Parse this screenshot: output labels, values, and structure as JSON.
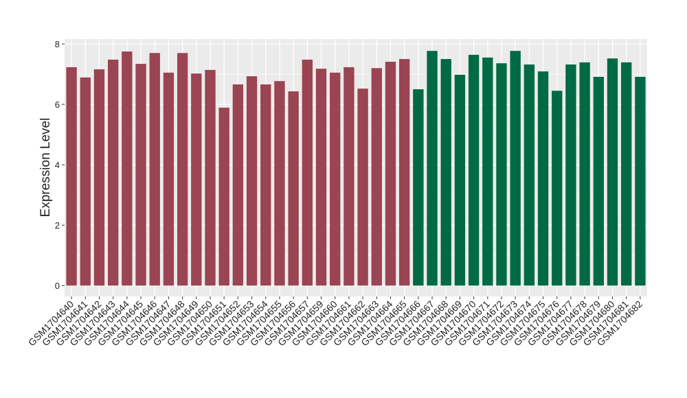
{
  "chart_data": {
    "type": "bar",
    "ylabel": "Expression Level",
    "categories": [
      "GSM1704640",
      "GSM1704641",
      "GSM1704642",
      "GSM1704643",
      "GSM1704644",
      "GSM1704645",
      "GSM1704646",
      "GSM1704647",
      "GSM1704648",
      "GSM1704649",
      "GSM1704650",
      "GSM1704651",
      "GSM1704652",
      "GSM1704653",
      "GSM1704654",
      "GSM1704655",
      "GSM1704656",
      "GSM1704657",
      "GSM1704659",
      "GSM1704660",
      "GSM1704661",
      "GSM1704662",
      "GSM1704663",
      "GSM1704664",
      "GSM1704665",
      "GSM1704666",
      "GSM1704667",
      "GSM1704668",
      "GSM1704669",
      "GSM1704670",
      "GSM1704671",
      "GSM1704672",
      "GSM1704673",
      "GSM1704674",
      "GSM1704675",
      "GSM1704676",
      "GSM1704677",
      "GSM1704678",
      "GSM1704679",
      "GSM1704680",
      "GSM1704681",
      "GSM1704682"
    ],
    "values": [
      7.23,
      6.89,
      7.16,
      7.48,
      7.75,
      7.34,
      7.7,
      7.05,
      7.7,
      7.02,
      7.14,
      5.89,
      6.66,
      6.93,
      6.66,
      6.77,
      6.43,
      7.48,
      7.18,
      7.05,
      7.23,
      6.52,
      7.2,
      7.41,
      7.5,
      6.5,
      7.77,
      7.5,
      6.98,
      7.64,
      7.55,
      7.36,
      7.77,
      7.32,
      7.09,
      6.45,
      7.32,
      7.39,
      6.91,
      7.52,
      7.39,
      6.91
    ],
    "colors": [
      "#9b4452",
      "#9b4452",
      "#9b4452",
      "#9b4452",
      "#9b4452",
      "#9b4452",
      "#9b4452",
      "#9b4452",
      "#9b4452",
      "#9b4452",
      "#9b4452",
      "#9b4452",
      "#9b4452",
      "#9b4452",
      "#9b4452",
      "#9b4452",
      "#9b4452",
      "#9b4452",
      "#9b4452",
      "#9b4452",
      "#9b4452",
      "#9b4452",
      "#9b4452",
      "#9b4452",
      "#9b4452",
      "#006a44",
      "#006a44",
      "#006a44",
      "#006a44",
      "#006a44",
      "#006a44",
      "#006a44",
      "#006a44",
      "#006a44",
      "#006a44",
      "#006a44",
      "#006a44",
      "#006a44",
      "#006a44",
      "#006a44",
      "#006a44",
      "#006a44"
    ],
    "ylim": [
      -0.36,
      8.16
    ],
    "yticks": [
      0,
      2,
      4,
      6,
      8
    ],
    "grid": true
  }
}
